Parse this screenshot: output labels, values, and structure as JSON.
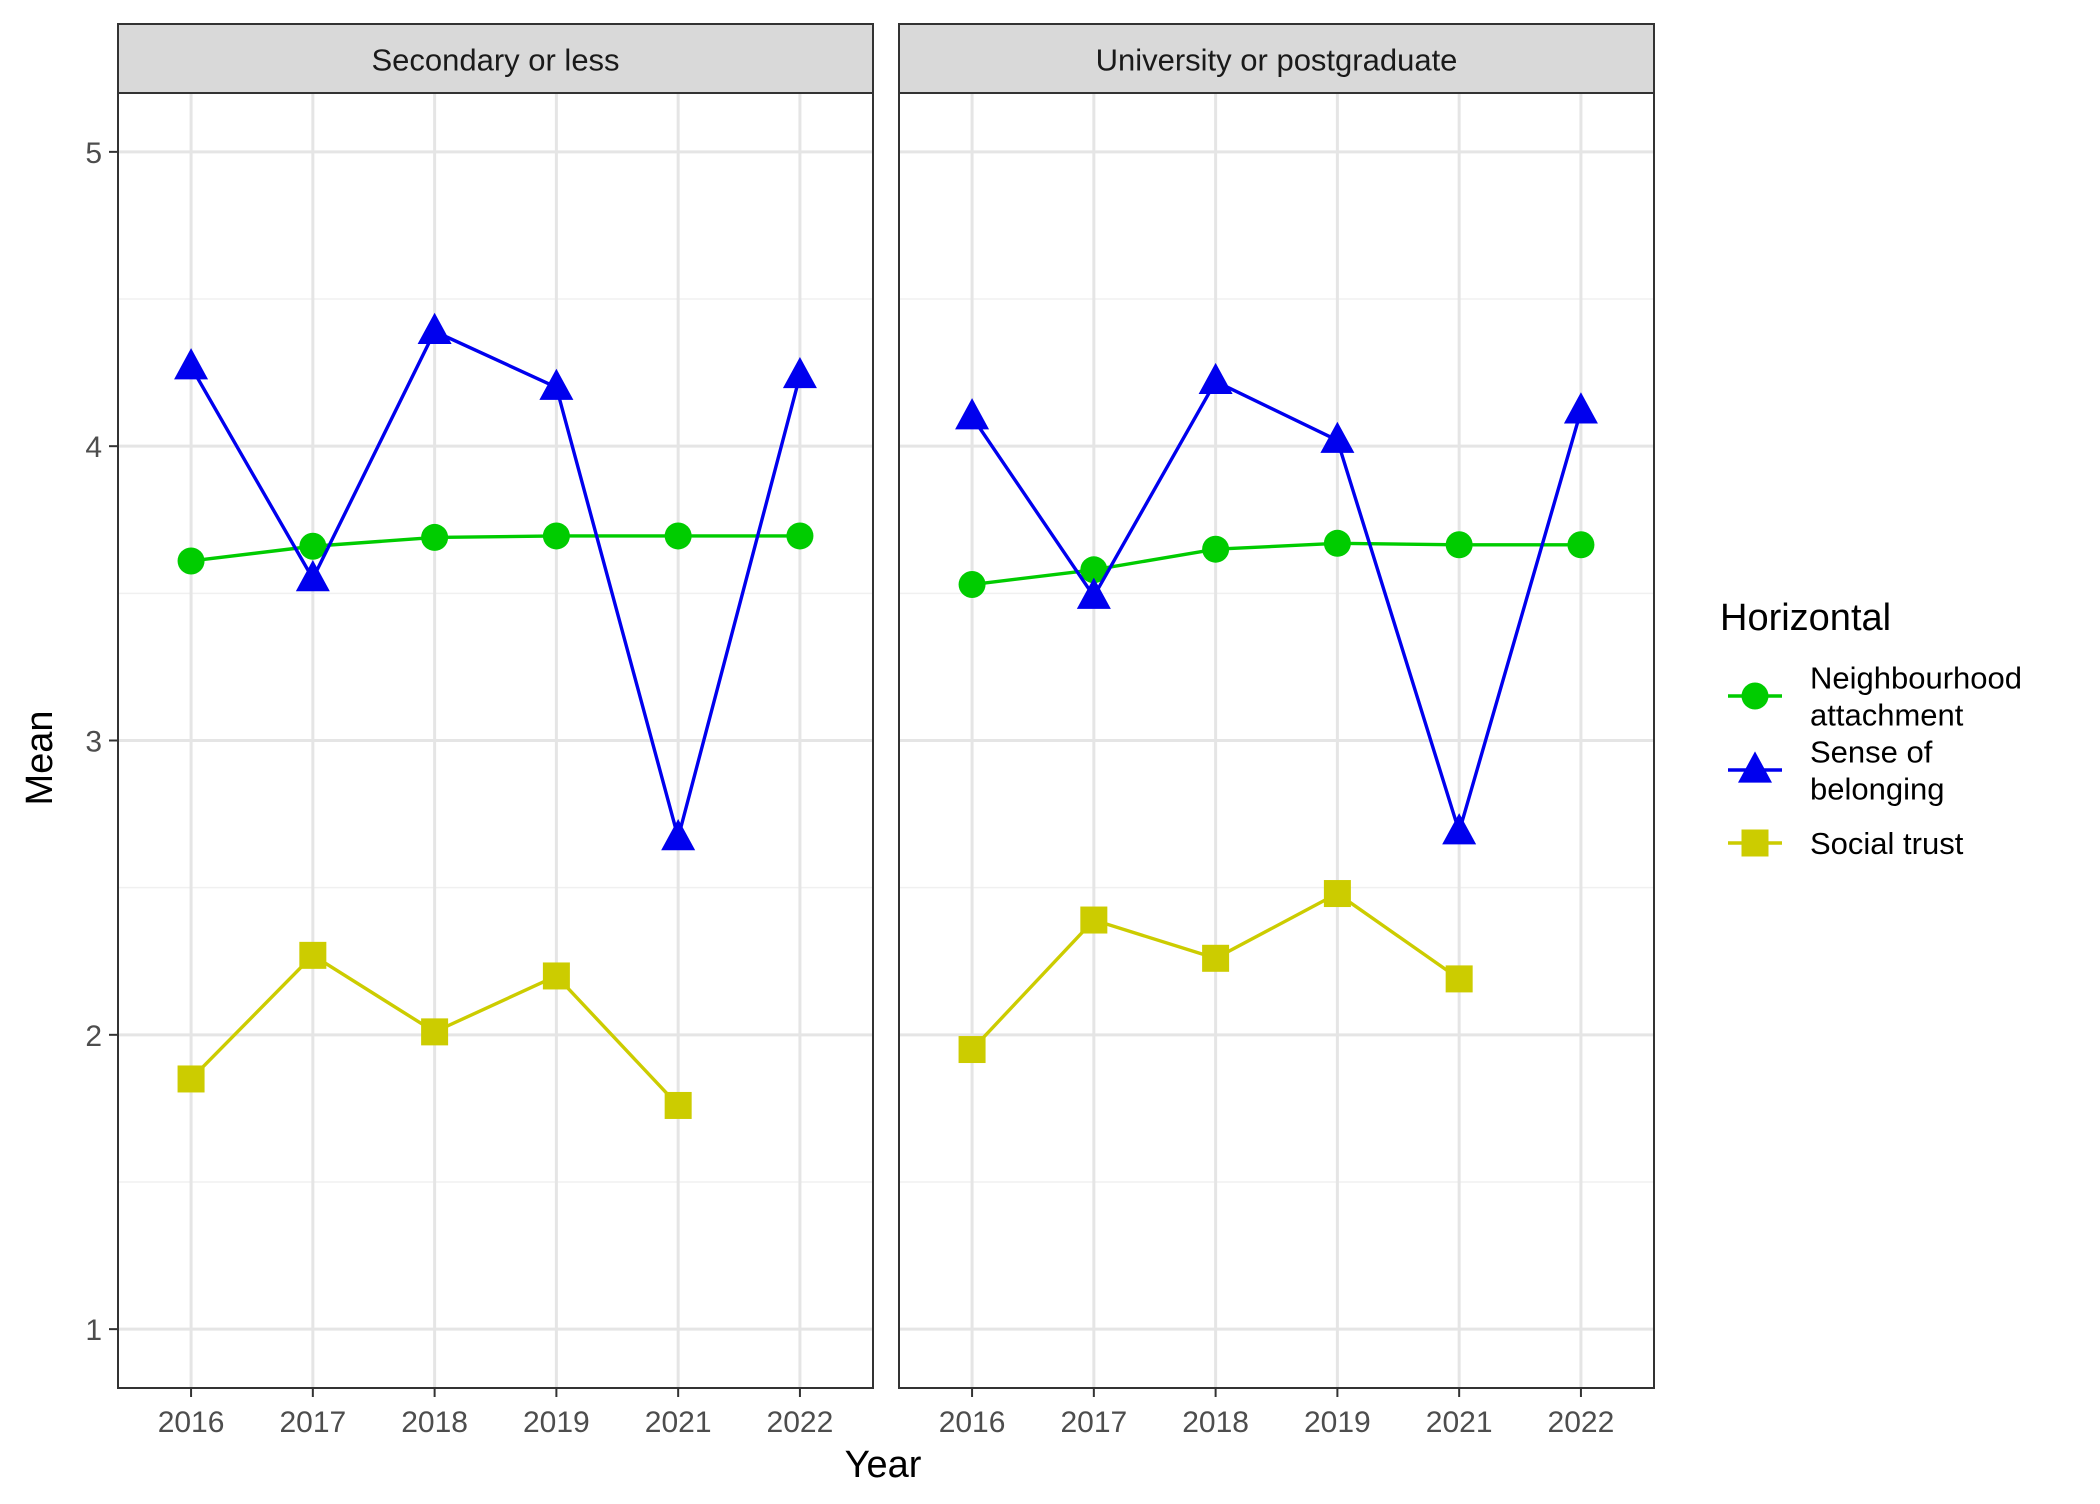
{
  "chart_data": {
    "type": "line",
    "xlabel": "Year",
    "ylabel": "Mean",
    "ylim": [
      0.8,
      5.2
    ],
    "y_ticks": [
      1,
      2,
      3,
      4,
      5
    ],
    "grid": true,
    "legend": {
      "title": "Horizontal",
      "placement": "right",
      "items": [
        {
          "label_lines": [
            "Neighbourhood",
            "attachment"
          ]
        },
        {
          "label_lines": [
            "Sense of",
            "belonging"
          ]
        },
        {
          "label_lines": [
            "Social trust"
          ]
        }
      ]
    },
    "categories": [
      "2016",
      "2017",
      "2018",
      "2019",
      "2021",
      "2022"
    ],
    "panels": [
      {
        "title": "Secondary or less",
        "series": [
          {
            "name": "Neighbourhood attachment",
            "color": "#00cc00",
            "marker": "circle",
            "values": [
              3.61,
              3.66,
              3.69,
              3.695,
              3.695,
              3.695
            ]
          },
          {
            "name": "Sense of belonging",
            "color": "#0000ee",
            "marker": "triangle",
            "values": [
              4.27,
              3.55,
              4.39,
              4.2,
              2.67,
              4.24
            ]
          },
          {
            "name": "Social trust",
            "color": "#cccc00",
            "marker": "square",
            "values": [
              1.85,
              2.27,
              2.01,
              2.2,
              1.76,
              null
            ]
          }
        ]
      },
      {
        "title": "University or postgraduate",
        "series": [
          {
            "name": "Neighbourhood attachment",
            "color": "#00cc00",
            "marker": "circle",
            "values": [
              3.53,
              3.58,
              3.65,
              3.67,
              3.665,
              3.665
            ]
          },
          {
            "name": "Sense of belonging",
            "color": "#0000ee",
            "marker": "triangle",
            "values": [
              4.1,
              3.49,
              4.22,
              4.02,
              2.69,
              4.12
            ]
          },
          {
            "name": "Social trust",
            "color": "#cccc00",
            "marker": "square",
            "values": [
              1.95,
              2.39,
              2.26,
              2.48,
              2.19,
              null
            ]
          }
        ]
      }
    ]
  }
}
